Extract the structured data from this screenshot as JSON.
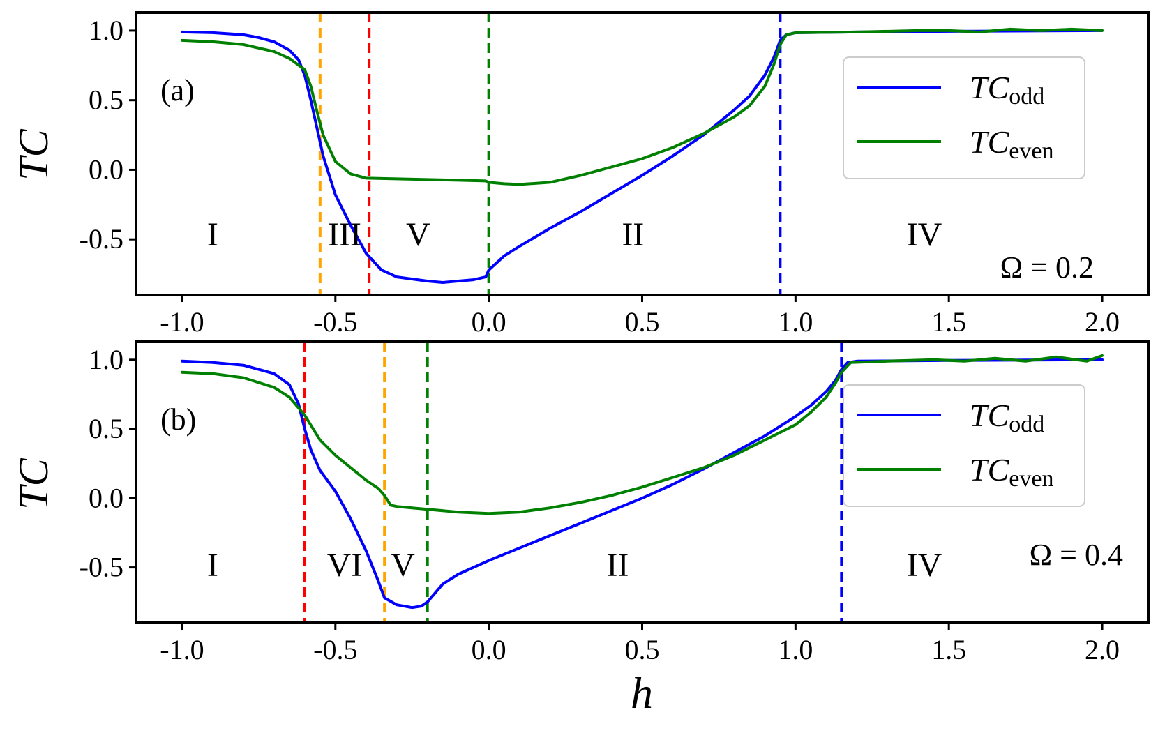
{
  "chart_data": [
    {
      "type": "line",
      "panel_label": "(a)",
      "annotation": "Ω = 0.2",
      "xlabel": "",
      "ylabel": "TC",
      "xlim": [
        -1.15,
        2.15
      ],
      "ylim": [
        -0.9,
        1.13
      ],
      "xticks": [
        -1.0,
        -0.5,
        0.0,
        0.5,
        1.0,
        1.5,
        2.0
      ],
      "xtick_labels": [
        "-1.0",
        "-0.5",
        "0.0",
        "0.5",
        "1.0",
        "1.5",
        "2.0"
      ],
      "yticks": [
        1.0,
        0.5,
        0.0,
        -0.5
      ],
      "ytick_labels": [
        "1.0",
        "0.5",
        "0.0",
        "-0.5"
      ],
      "legend": {
        "position": "top-right",
        "entries": [
          {
            "series": "odd",
            "main": "TC",
            "sub": "odd"
          },
          {
            "series": "even",
            "main": "TC",
            "sub": "even"
          }
        ]
      },
      "vlines": [
        {
          "x": -0.55,
          "color": "#ffa500"
        },
        {
          "x": -0.39,
          "color": "#ff0000"
        },
        {
          "x": 0.0,
          "color": "#008000"
        },
        {
          "x": 0.95,
          "color": "#0000ff"
        }
      ],
      "regions": [
        {
          "label": "I",
          "x": -0.9
        },
        {
          "label": "III",
          "x": -0.47
        },
        {
          "label": "V",
          "x": -0.23
        },
        {
          "label": "II",
          "x": 0.47
        },
        {
          "label": "IV",
          "x": 1.42
        }
      ],
      "series": [
        {
          "name": "TC_odd",
          "key": "odd",
          "color": "#0000ff",
          "x": [
            -1.0,
            -0.9,
            -0.8,
            -0.75,
            -0.7,
            -0.65,
            -0.62,
            -0.6,
            -0.58,
            -0.56,
            -0.54,
            -0.5,
            -0.45,
            -0.4,
            -0.35,
            -0.3,
            -0.2,
            -0.15,
            -0.1,
            -0.05,
            -0.01,
            0.0,
            0.05,
            0.1,
            0.2,
            0.3,
            0.4,
            0.5,
            0.6,
            0.7,
            0.8,
            0.85,
            0.9,
            0.93,
            0.95,
            0.97,
            1.0,
            1.2,
            1.5,
            2.0
          ],
          "y": [
            0.99,
            0.985,
            0.97,
            0.95,
            0.92,
            0.86,
            0.79,
            0.68,
            0.5,
            0.3,
            0.1,
            -0.18,
            -0.4,
            -0.6,
            -0.72,
            -0.77,
            -0.8,
            -0.81,
            -0.8,
            -0.79,
            -0.77,
            -0.72,
            -0.62,
            -0.55,
            -0.42,
            -0.3,
            -0.17,
            -0.04,
            0.1,
            0.25,
            0.43,
            0.53,
            0.68,
            0.81,
            0.93,
            0.97,
            0.985,
            0.99,
            0.995,
            1.0
          ]
        },
        {
          "name": "TC_even",
          "key": "even",
          "color": "#008000",
          "x": [
            -1.0,
            -0.9,
            -0.8,
            -0.7,
            -0.65,
            -0.6,
            -0.58,
            -0.56,
            -0.54,
            -0.5,
            -0.45,
            -0.4,
            -0.3,
            -0.2,
            -0.1,
            -0.01,
            0.0,
            0.05,
            0.1,
            0.2,
            0.3,
            0.4,
            0.5,
            0.6,
            0.7,
            0.8,
            0.85,
            0.9,
            0.93,
            0.95,
            0.97,
            1.0,
            1.2,
            1.4,
            1.5,
            1.6,
            1.7,
            1.8,
            1.9,
            2.0
          ],
          "y": [
            0.93,
            0.92,
            0.9,
            0.85,
            0.8,
            0.72,
            0.6,
            0.42,
            0.25,
            0.06,
            -0.03,
            -0.06,
            -0.065,
            -0.07,
            -0.075,
            -0.08,
            -0.09,
            -0.1,
            -0.105,
            -0.09,
            -0.04,
            0.02,
            0.08,
            0.16,
            0.26,
            0.38,
            0.46,
            0.6,
            0.76,
            0.9,
            0.97,
            0.985,
            0.99,
            1.0,
            1.0,
            0.99,
            1.01,
            1.0,
            1.01,
            1.0
          ]
        }
      ]
    },
    {
      "type": "line",
      "panel_label": "(b)",
      "annotation": "Ω = 0.4",
      "xlabel": "h",
      "ylabel": "TC",
      "xlim": [
        -1.15,
        2.15
      ],
      "ylim": [
        -0.9,
        1.13
      ],
      "xticks": [
        -1.0,
        -0.5,
        0.0,
        0.5,
        1.0,
        1.5,
        2.0
      ],
      "xtick_labels": [
        "-1.0",
        "-0.5",
        "0.0",
        "0.5",
        "1.0",
        "1.5",
        "2.0"
      ],
      "yticks": [
        1.0,
        0.5,
        0.0,
        -0.5
      ],
      "ytick_labels": [
        "1.0",
        "0.5",
        "0.0",
        "-0.5"
      ],
      "legend": {
        "position": "top-right",
        "entries": [
          {
            "series": "odd",
            "main": "TC",
            "sub": "odd"
          },
          {
            "series": "even",
            "main": "TC",
            "sub": "even"
          }
        ]
      },
      "vlines": [
        {
          "x": -0.6,
          "color": "#ff0000"
        },
        {
          "x": -0.34,
          "color": "#ffa500"
        },
        {
          "x": -0.2,
          "color": "#008000"
        },
        {
          "x": 1.15,
          "color": "#0000ff"
        }
      ],
      "regions": [
        {
          "label": "I",
          "x": -0.9
        },
        {
          "label": "VI",
          "x": -0.47
        },
        {
          "label": "V",
          "x": -0.28
        },
        {
          "label": "II",
          "x": 0.42
        },
        {
          "label": "IV",
          "x": 1.42
        }
      ],
      "series": [
        {
          "name": "TC_odd",
          "key": "odd",
          "color": "#0000ff",
          "x": [
            -1.0,
            -0.9,
            -0.8,
            -0.7,
            -0.65,
            -0.62,
            -0.6,
            -0.58,
            -0.55,
            -0.5,
            -0.45,
            -0.4,
            -0.36,
            -0.34,
            -0.3,
            -0.25,
            -0.22,
            -0.2,
            -0.15,
            -0.1,
            0.0,
            0.1,
            0.2,
            0.3,
            0.4,
            0.5,
            0.6,
            0.7,
            0.8,
            0.9,
            1.0,
            1.05,
            1.1,
            1.13,
            1.15,
            1.17,
            1.2,
            1.5,
            2.0
          ],
          "y": [
            0.99,
            0.98,
            0.96,
            0.9,
            0.82,
            0.68,
            0.5,
            0.35,
            0.2,
            0.05,
            -0.15,
            -0.38,
            -0.6,
            -0.72,
            -0.77,
            -0.79,
            -0.78,
            -0.75,
            -0.62,
            -0.55,
            -0.45,
            -0.36,
            -0.27,
            -0.18,
            -0.09,
            0.0,
            0.1,
            0.21,
            0.33,
            0.45,
            0.59,
            0.67,
            0.77,
            0.85,
            0.93,
            0.98,
            0.99,
            0.995,
            1.0
          ]
        },
        {
          "name": "TC_even",
          "key": "even",
          "color": "#008000",
          "x": [
            -1.0,
            -0.9,
            -0.8,
            -0.7,
            -0.65,
            -0.6,
            -0.55,
            -0.5,
            -0.45,
            -0.4,
            -0.36,
            -0.34,
            -0.32,
            -0.3,
            -0.2,
            -0.1,
            0.0,
            0.1,
            0.2,
            0.3,
            0.4,
            0.5,
            0.6,
            0.7,
            0.8,
            0.9,
            1.0,
            1.05,
            1.1,
            1.13,
            1.15,
            1.18,
            1.3,
            1.45,
            1.55,
            1.65,
            1.75,
            1.85,
            1.95,
            2.0
          ],
          "y": [
            0.91,
            0.9,
            0.87,
            0.8,
            0.73,
            0.6,
            0.42,
            0.31,
            0.22,
            0.13,
            0.07,
            0.02,
            -0.05,
            -0.06,
            -0.08,
            -0.1,
            -0.11,
            -0.1,
            -0.07,
            -0.03,
            0.02,
            0.08,
            0.15,
            0.22,
            0.31,
            0.42,
            0.53,
            0.62,
            0.73,
            0.83,
            0.91,
            0.98,
            0.99,
            1.0,
            0.99,
            1.01,
            0.99,
            1.02,
            0.99,
            1.03
          ]
        }
      ]
    }
  ]
}
